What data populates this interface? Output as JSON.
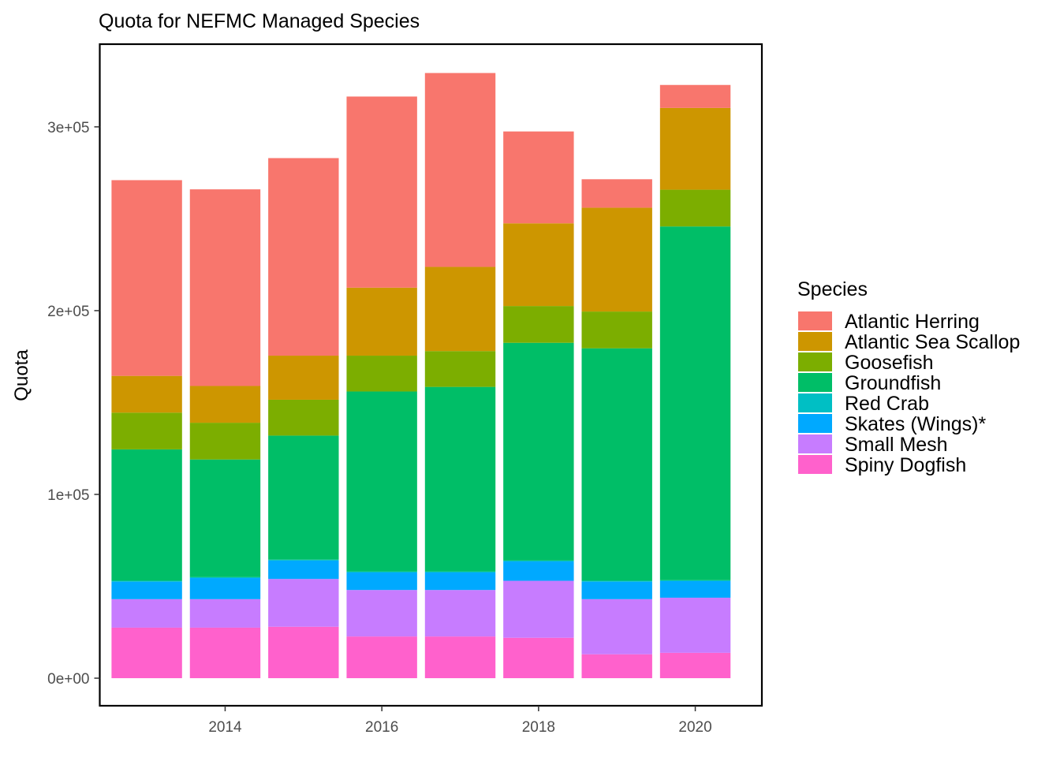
{
  "chart_data": {
    "type": "bar",
    "stacked": true,
    "title": "Quota for NEFMC Managed Species",
    "xlabel": "",
    "ylabel": "Quota",
    "x": [
      2013,
      2014,
      2015,
      2016,
      2017,
      2018,
      2019,
      2020
    ],
    "x_ticks": [
      2014,
      2016,
      2018,
      2020
    ],
    "x_tick_labels": [
      "2014",
      "2016",
      "2018",
      "2020"
    ],
    "xlim": [
      2012.4,
      2020.85
    ],
    "ylim": [
      -15000,
      345000
    ],
    "y_ticks": [
      0,
      100000,
      200000,
      300000
    ],
    "y_tick_labels": [
      "0e+00",
      "1e+05",
      "2e+05",
      "3e+05"
    ],
    "grid": false,
    "legend_title": "Species",
    "legend_position": "right",
    "series": [
      {
        "name": "Spiny Dogfish",
        "color": "#FF61CC",
        "values": [
          27500,
          27500,
          28000,
          22700,
          22700,
          22000,
          13000,
          13800
        ]
      },
      {
        "name": "Small Mesh",
        "color": "#C77CFF",
        "values": [
          15500,
          15500,
          26000,
          25300,
          25300,
          31000,
          30000,
          30000
        ]
      },
      {
        "name": "Skates (Wings)*",
        "color": "#00A9FF",
        "values": [
          9500,
          11500,
          10000,
          9500,
          9500,
          10500,
          9500,
          9000
        ]
      },
      {
        "name": "Red Crab",
        "color": "#00BFC4",
        "values": [
          500,
          500,
          500,
          500,
          500,
          500,
          500,
          500
        ]
      },
      {
        "name": "Groundfish",
        "color": "#00BE67",
        "values": [
          71500,
          64000,
          67500,
          98000,
          100500,
          118500,
          126500,
          192500
        ]
      },
      {
        "name": "Goosefish",
        "color": "#7CAE00",
        "values": [
          20000,
          20000,
          19500,
          19500,
          19500,
          20000,
          20000,
          20000
        ]
      },
      {
        "name": "Atlantic Sea Scallop",
        "color": "#CD9600",
        "values": [
          20000,
          20000,
          24000,
          37000,
          45800,
          45000,
          56500,
          44500
        ]
      },
      {
        "name": "Atlantic Herring",
        "color": "#F8766D",
        "values": [
          106500,
          107000,
          107500,
          104000,
          105500,
          50000,
          15500,
          12500
        ]
      }
    ],
    "legend_order": [
      "Atlantic Herring",
      "Atlantic Sea Scallop",
      "Goosefish",
      "Groundfish",
      "Red Crab",
      "Skates (Wings)*",
      "Small Mesh",
      "Spiny Dogfish"
    ]
  }
}
